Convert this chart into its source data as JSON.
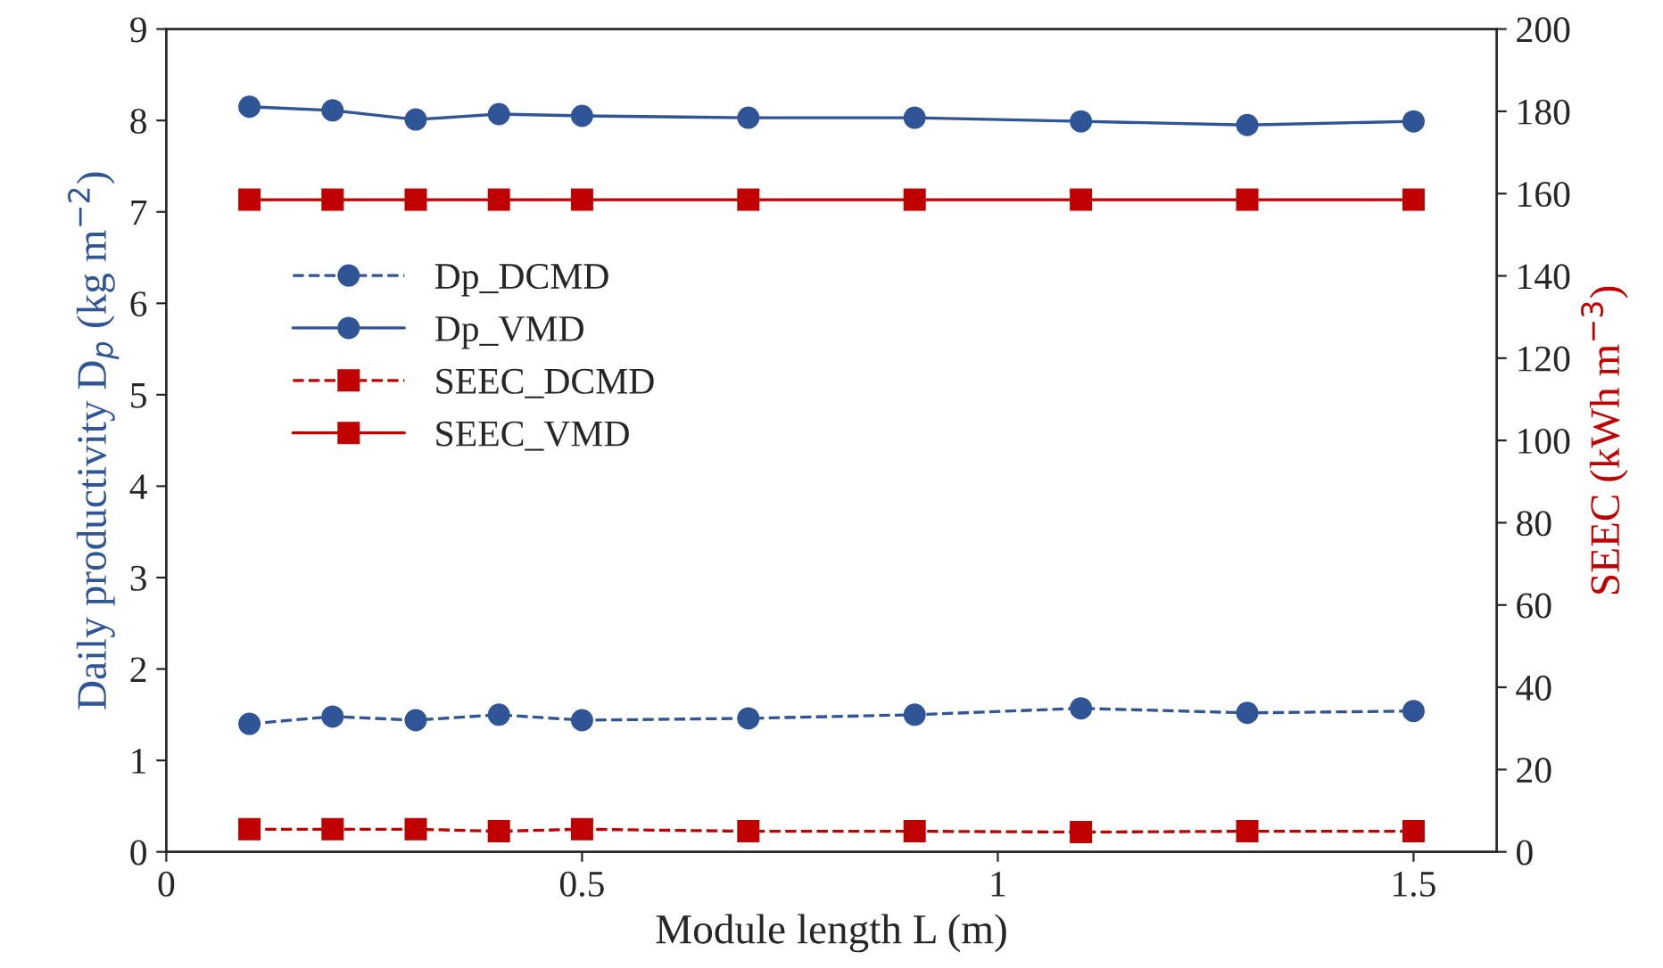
{
  "chart_data": {
    "type": "line",
    "xlabel": "Module length L (m)",
    "ylabel": "Daily productivity D$_{p}$ (kg m$^{−2}$)",
    "y2label": "SEEC (kWh m$^{−3}$)",
    "x": [
      0.1,
      0.2,
      0.3,
      0.4,
      0.5,
      0.7,
      0.9,
      1.1,
      1.3,
      1.5
    ],
    "series": [
      {
        "name": "Dp_DCMD",
        "color": "#2f5597",
        "marker": "circle",
        "line_style": "dashed",
        "values": [
          1.4,
          1.48,
          1.44,
          1.5,
          1.44,
          1.46,
          1.5,
          1.57,
          1.52,
          1.54
        ]
      },
      {
        "name": "Dp_VMD",
        "color": "#2f5597",
        "marker": "circle",
        "line_style": "solid",
        "values": [
          8.15,
          8.11,
          8.01,
          8.07,
          8.05,
          8.03,
          8.03,
          7.99,
          7.95,
          7.99
        ]
      },
      {
        "name": "SEEC_DCMD",
        "color": "#c00000",
        "marker": "square",
        "line_style": "dashed",
        "axis": "y2",
        "values": [
          5.5,
          5.5,
          5.5,
          5,
          5.5,
          5,
          5,
          4.8,
          5,
          5
        ]
      },
      {
        "name": "SEEC_VMD",
        "color": "#c00000",
        "marker": "square",
        "line_style": "solid",
        "axis": "y2",
        "values": [
          158.5,
          158.5,
          158.5,
          158.5,
          158.5,
          158.5,
          158.5,
          158.5,
          158.5,
          158.5
        ]
      }
    ],
    "xlim": [
      0,
      1.6
    ],
    "xticks": [
      0,
      0.5,
      1,
      1.5
    ],
    "ylim": [
      0,
      9
    ],
    "yticks": [
      0,
      1,
      2,
      3,
      4,
      5,
      6,
      7,
      8,
      9
    ],
    "y2lim": [
      0,
      200
    ],
    "y2ticks": [
      0,
      20,
      40,
      60,
      80,
      100,
      120,
      140,
      160,
      180,
      200
    ],
    "grid": false,
    "legend": "left"
  }
}
